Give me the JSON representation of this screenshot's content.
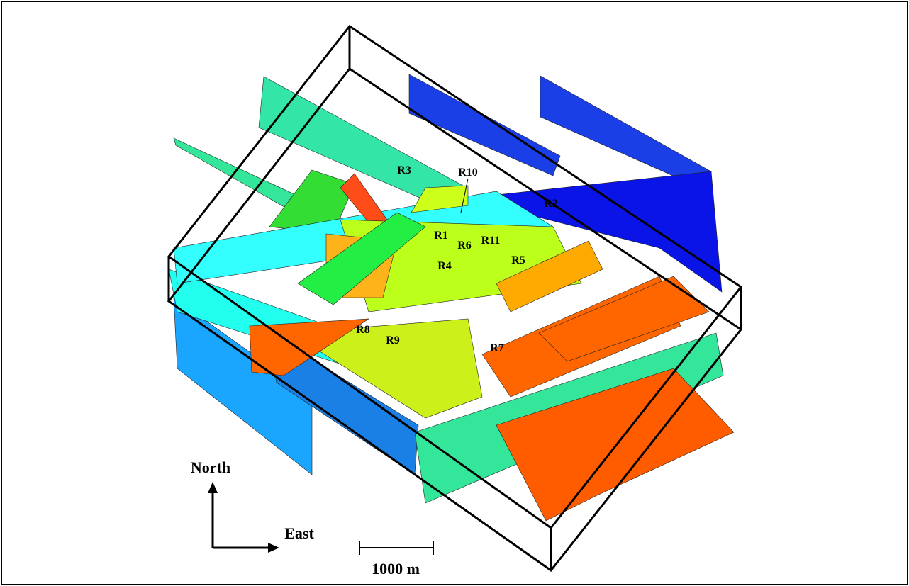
{
  "faults": [
    {
      "label": "R3"
    },
    {
      "label": "R10"
    },
    {
      "label": "R2"
    },
    {
      "label": "R1"
    },
    {
      "label": "R6"
    },
    {
      "label": "R11"
    },
    {
      "label": "R5"
    },
    {
      "label": "R4"
    },
    {
      "label": "R8"
    },
    {
      "label": "R9"
    },
    {
      "label": "R7"
    }
  ],
  "compass": {
    "north": "North",
    "east": "East"
  },
  "scale_bar": {
    "label": "1000 m"
  }
}
